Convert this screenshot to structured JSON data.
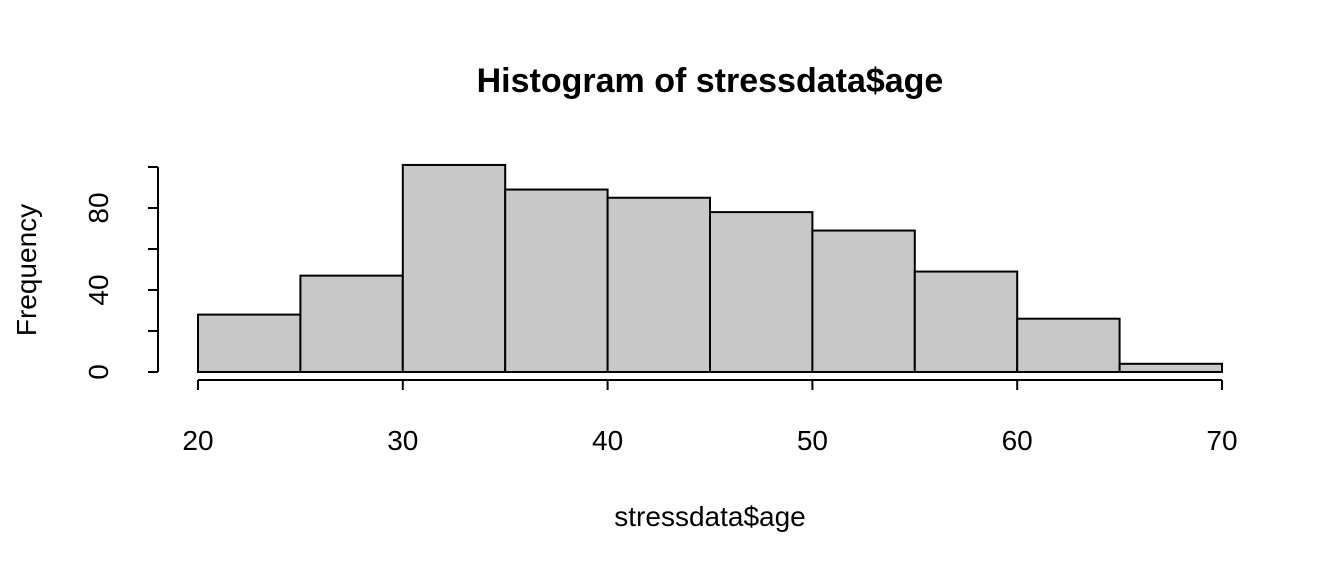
{
  "chart_data": {
    "type": "bar",
    "subtype": "histogram",
    "title": "Histogram of stressdata$age",
    "xlabel": "stressdata$age",
    "ylabel": "Frequency",
    "bins": [
      {
        "start": 20,
        "end": 25,
        "count": 28
      },
      {
        "start": 25,
        "end": 30,
        "count": 47
      },
      {
        "start": 30,
        "end": 35,
        "count": 101
      },
      {
        "start": 35,
        "end": 40,
        "count": 89
      },
      {
        "start": 40,
        "end": 45,
        "count": 85
      },
      {
        "start": 45,
        "end": 50,
        "count": 78
      },
      {
        "start": 50,
        "end": 55,
        "count": 69
      },
      {
        "start": 55,
        "end": 60,
        "count": 49
      },
      {
        "start": 60,
        "end": 65,
        "count": 26
      },
      {
        "start": 65,
        "end": 70,
        "count": 4
      }
    ],
    "xlim": [
      20,
      70
    ],
    "ylim": [
      0,
      100
    ],
    "x_ticks": [
      20,
      30,
      40,
      50,
      60,
      70
    ],
    "x_tick_labels": [
      "20",
      "30",
      "40",
      "50",
      "60",
      "70"
    ],
    "y_ticks": [
      0,
      20,
      40,
      60,
      80,
      100
    ],
    "y_tick_labels": [
      "0",
      "",
      "40",
      "",
      "80",
      ""
    ],
    "bar_color": "#c8c8c8",
    "border_color": "#000000",
    "grid": false,
    "legend": "none"
  }
}
